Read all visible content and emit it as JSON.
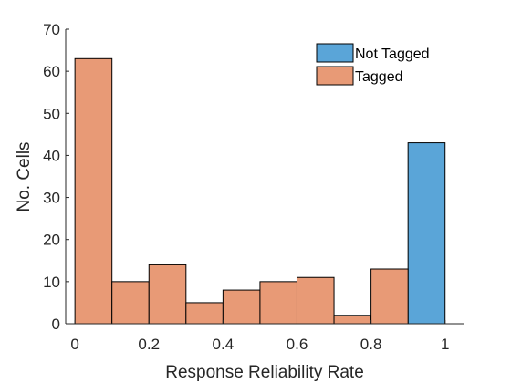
{
  "chart_data": {
    "type": "bar",
    "title": "",
    "xlabel": "Response Reliability Rate",
    "ylabel": "No. Cells",
    "xlim": [
      -0.025,
      1.05
    ],
    "ylim": [
      0,
      70
    ],
    "xticks": [
      0,
      0.2,
      0.4,
      0.6,
      0.8,
      1
    ],
    "xtick_labels": [
      "0",
      "0.2",
      "0.4",
      "0.6",
      "0.8",
      "1"
    ],
    "yticks": [
      0,
      10,
      20,
      30,
      40,
      50,
      60,
      70
    ],
    "ytick_labels": [
      "0",
      "10",
      "20",
      "30",
      "40",
      "50",
      "60",
      "70"
    ],
    "bin_edges": [
      0,
      0.1,
      0.2,
      0.3,
      0.4,
      0.5,
      0.6,
      0.7,
      0.8,
      0.9,
      1.0
    ],
    "legend_position": "top-right",
    "series": [
      {
        "name": "Not Tagged",
        "color": "#5aa5d8",
        "values": [
          0,
          0,
          0,
          0,
          0,
          0,
          0,
          0,
          0,
          43
        ]
      },
      {
        "name": "Tagged",
        "color": "#e89a76",
        "values": [
          63,
          10,
          14,
          5,
          8,
          10,
          11,
          2,
          13,
          0
        ]
      }
    ],
    "grid": false
  }
}
